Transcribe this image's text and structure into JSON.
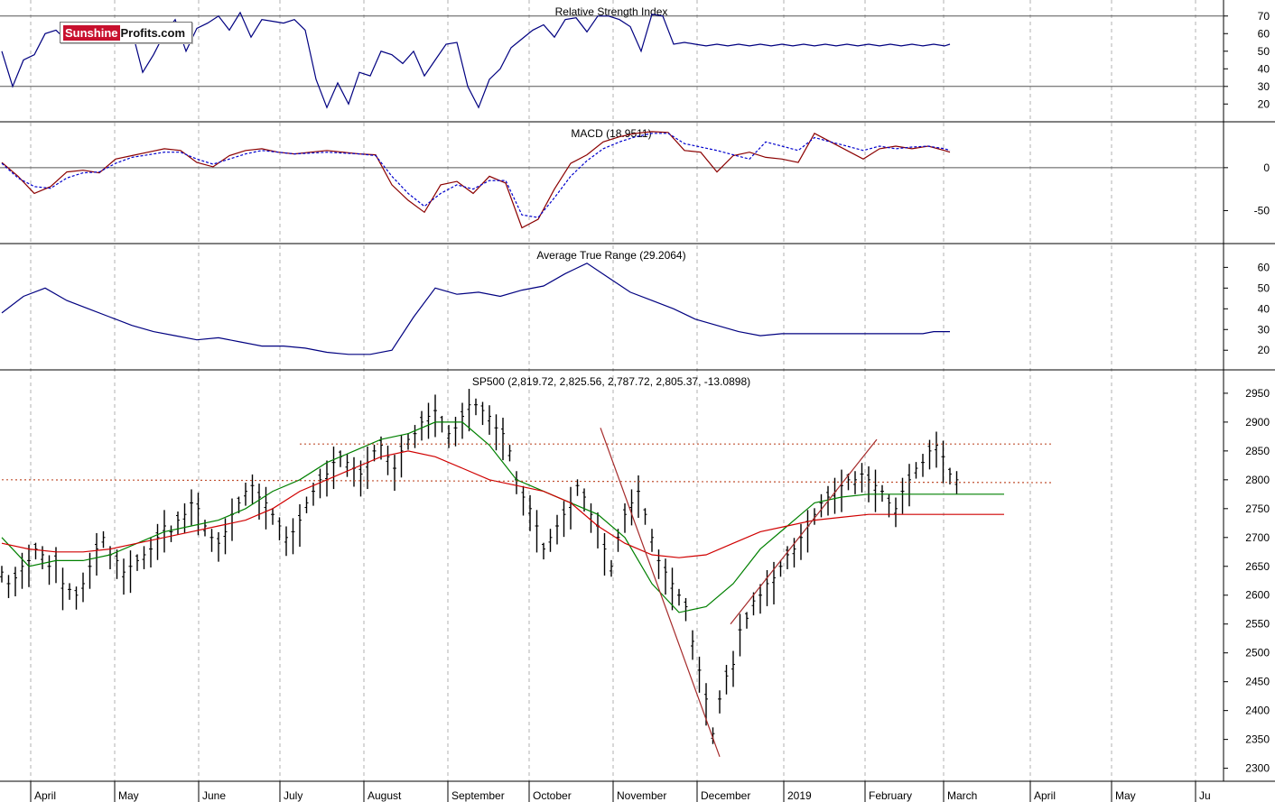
{
  "logo": {
    "part1": "Sunshine",
    "part2": "Profits.com"
  },
  "chart_data": [
    {
      "type": "line",
      "title": "Relative Strength Index",
      "ylim": [
        14,
        75
      ],
      "yticks": [
        70,
        60,
        50,
        40,
        30,
        20
      ],
      "reference_lines": [
        70,
        30
      ],
      "series": [
        {
          "name": "",
          "color": "#000080",
          "x_days": [
            0,
            4,
            8,
            12,
            16,
            20,
            24,
            28,
            32,
            36,
            40,
            44,
            48,
            52,
            56,
            60,
            64,
            68,
            72,
            76,
            80,
            84,
            88,
            92,
            96,
            100,
            104,
            108,
            112,
            116,
            120,
            124,
            128,
            132,
            136,
            140,
            144,
            148,
            152,
            156,
            160,
            164,
            168,
            172,
            176,
            180,
            184,
            188,
            192,
            196,
            200,
            204,
            208,
            212,
            216,
            220,
            224,
            228,
            232,
            236,
            240,
            244,
            248,
            252,
            256,
            260,
            264,
            268,
            272,
            276,
            280,
            284,
            288,
            292,
            296,
            300,
            304,
            308,
            312,
            316,
            320,
            324,
            328,
            332,
            336,
            340,
            344,
            348,
            350
          ],
          "values": [
            50,
            30,
            45,
            48,
            60,
            62,
            56,
            55,
            58,
            65,
            55,
            66,
            62,
            38,
            48,
            60,
            68,
            50,
            63,
            66,
            70,
            62,
            72,
            58,
            68,
            67,
            66,
            68,
            62,
            34,
            18,
            32,
            20,
            38,
            36,
            50,
            48,
            43,
            50,
            36,
            45,
            54,
            55,
            30,
            18,
            34,
            40,
            52,
            57,
            62,
            65,
            58,
            68,
            69,
            61,
            70,
            70,
            68,
            64,
            50,
            71,
            70,
            54,
            55,
            54,
            53,
            54,
            53,
            54,
            53,
            54,
            53,
            54,
            53,
            54,
            53,
            54,
            53,
            54,
            53,
            54,
            53,
            54,
            53,
            54,
            53,
            54,
            53,
            54
          ]
        }
      ]
    },
    {
      "type": "line",
      "title": "MACD (18.9511)",
      "ylim": [
        -80,
        45
      ],
      "yticks": [
        0,
        -50
      ],
      "zero_line": true,
      "series": [
        {
          "name": "",
          "color": "#8b0000",
          "style": "solid",
          "x_days": [
            0,
            6,
            12,
            18,
            24,
            30,
            36,
            42,
            48,
            54,
            60,
            66,
            72,
            78,
            84,
            90,
            96,
            102,
            108,
            114,
            120,
            126,
            132,
            138,
            144,
            150,
            156,
            162,
            168,
            174,
            180,
            186,
            192,
            198,
            204,
            210,
            216,
            222,
            228,
            234,
            240,
            246,
            252,
            258,
            264,
            270,
            276,
            282,
            288,
            294,
            300,
            306,
            312,
            318,
            324,
            330,
            336,
            342,
            348,
            350
          ],
          "values": [
            6,
            -10,
            -30,
            -22,
            -5,
            -3,
            -6,
            10,
            14,
            18,
            22,
            20,
            6,
            1,
            14,
            20,
            22,
            18,
            16,
            18,
            20,
            18,
            16,
            15,
            -20,
            -38,
            -52,
            -20,
            -16,
            -30,
            -10,
            -18,
            -70,
            -60,
            -25,
            5,
            15,
            30,
            36,
            40,
            42,
            41,
            20,
            18,
            -5,
            14,
            18,
            12,
            10,
            6,
            40,
            30,
            20,
            10,
            22,
            25,
            22,
            25,
            20,
            18
          ]
        },
        {
          "name": "",
          "color": "#0000cd",
          "style": "dashed",
          "x_days": [
            0,
            6,
            12,
            18,
            24,
            30,
            36,
            42,
            48,
            54,
            60,
            66,
            72,
            78,
            84,
            90,
            96,
            102,
            108,
            114,
            120,
            126,
            132,
            138,
            144,
            150,
            156,
            162,
            168,
            174,
            180,
            186,
            192,
            198,
            204,
            210,
            216,
            222,
            228,
            234,
            240,
            246,
            252,
            258,
            264,
            270,
            276,
            282,
            288,
            294,
            300,
            306,
            312,
            318,
            324,
            330,
            336,
            342,
            348,
            350
          ],
          "values": [
            5,
            -12,
            -22,
            -24,
            -12,
            -6,
            -5,
            5,
            12,
            15,
            18,
            18,
            10,
            4,
            10,
            16,
            20,
            18,
            16,
            17,
            18,
            17,
            16,
            14,
            -10,
            -30,
            -45,
            -30,
            -20,
            -25,
            -15,
            -15,
            -55,
            -58,
            -35,
            -10,
            8,
            22,
            30,
            36,
            40,
            40,
            28,
            24,
            20,
            15,
            10,
            30,
            25,
            20,
            35,
            30,
            25,
            20,
            25,
            22,
            24,
            25,
            22,
            20
          ]
        }
      ]
    },
    {
      "type": "line",
      "title": "Average True Range (29.2064)",
      "ylim": [
        14,
        68
      ],
      "yticks": [
        60,
        50,
        40,
        30,
        20
      ],
      "series": [
        {
          "name": "",
          "color": "#000080",
          "x_days": [
            0,
            8,
            16,
            24,
            32,
            40,
            48,
            56,
            64,
            72,
            80,
            88,
            96,
            104,
            112,
            120,
            128,
            136,
            144,
            152,
            160,
            168,
            176,
            184,
            192,
            200,
            208,
            216,
            224,
            232,
            240,
            248,
            256,
            264,
            272,
            280,
            288,
            296,
            300,
            304,
            308,
            312,
            316,
            320,
            324,
            328,
            332,
            336,
            340,
            344,
            348,
            350
          ],
          "values": [
            38,
            46,
            50,
            44,
            40,
            36,
            32,
            29,
            27,
            25,
            26,
            24,
            22,
            22,
            21,
            19,
            18,
            18,
            20,
            36,
            50,
            47,
            48,
            46,
            49,
            51,
            57,
            62,
            55,
            48,
            44,
            40,
            35,
            32,
            29,
            27,
            28,
            28,
            28,
            28,
            28,
            28,
            28,
            28,
            28,
            28,
            28,
            28,
            28,
            29,
            29,
            29
          ]
        }
      ]
    },
    {
      "type": "line",
      "title": "SP500 (2,819.72, 2,825.56, 2,787.72, 2,805.37, -13.0898)",
      "ylim": [
        2290,
        2978
      ],
      "yticks": [
        2950,
        2900,
        2850,
        2800,
        2750,
        2700,
        2650,
        2600,
        2550,
        2500,
        2450,
        2400,
        2350,
        2300
      ],
      "xlabels": [
        "April",
        "May",
        "June",
        "July",
        "August",
        "September",
        "October",
        "November",
        "December",
        "2019",
        "February",
        "March",
        "April",
        "May",
        "Ju"
      ],
      "x_label_days": [
        12,
        43,
        74,
        104,
        135,
        166,
        196,
        227,
        258,
        290,
        320,
        349,
        381,
        411,
        442
      ],
      "ohlc_daily_close": [
        2640,
        2620,
        2630,
        2650,
        2660,
        2680,
        2670,
        2650,
        2660,
        2620,
        2610,
        2600,
        2620,
        2650,
        2680,
        2700,
        2670,
        2660,
        2640,
        2650,
        2660,
        2670,
        2680,
        2700,
        2720,
        2710,
        2730,
        2740,
        2760,
        2750,
        2720,
        2700,
        2690,
        2710,
        2740,
        2760,
        2780,
        2790,
        2770,
        2760,
        2740,
        2720,
        2700,
        2710,
        2730,
        2760,
        2780,
        2800,
        2810,
        2830,
        2840,
        2830,
        2820,
        2810,
        2830,
        2850,
        2860,
        2840,
        2820,
        2850,
        2870,
        2880,
        2900,
        2910,
        2920,
        2900,
        2880,
        2890,
        2910,
        2930,
        2930,
        2920,
        2910,
        2890,
        2880,
        2850,
        2800,
        2770,
        2750,
        2720,
        2680,
        2700,
        2720,
        2740,
        2760,
        2790,
        2770,
        2740,
        2720,
        2680,
        2650,
        2700,
        2740,
        2760,
        2780,
        2740,
        2700,
        2660,
        2640,
        2620,
        2600,
        2580,
        2520,
        2470,
        2420,
        2360,
        2420,
        2460,
        2480,
        2540,
        2560,
        2590,
        2600,
        2620,
        2630,
        2650,
        2670,
        2680,
        2700,
        2720,
        2740,
        2760,
        2770,
        2780,
        2790,
        2800,
        2800,
        2810,
        2800,
        2790,
        2780,
        2760,
        2750,
        2780,
        2800,
        2820,
        2830,
        2850,
        2860,
        2840,
        2810,
        2800
      ],
      "series": [
        {
          "name": "",
          "color": "#008000",
          "style": "solid",
          "x_days": [
            0,
            10,
            20,
            30,
            40,
            50,
            60,
            70,
            80,
            90,
            100,
            110,
            120,
            130,
            140,
            150,
            160,
            170,
            180,
            190,
            200,
            210,
            220,
            230,
            240,
            250,
            260,
            270,
            280,
            290,
            300,
            310,
            320,
            330,
            340,
            350,
            360,
            370
          ],
          "values": [
            2700,
            2650,
            2660,
            2660,
            2670,
            2690,
            2710,
            2720,
            2730,
            2750,
            2780,
            2800,
            2830,
            2850,
            2870,
            2880,
            2900,
            2900,
            2860,
            2800,
            2780,
            2760,
            2740,
            2700,
            2620,
            2570,
            2580,
            2620,
            2680,
            2720,
            2760,
            2770,
            2775,
            2775,
            2775,
            2775,
            2775,
            2775
          ]
        },
        {
          "name": "",
          "color": "#d00000",
          "style": "solid",
          "x_days": [
            0,
            10,
            20,
            30,
            40,
            50,
            60,
            70,
            80,
            90,
            100,
            110,
            120,
            130,
            140,
            150,
            160,
            170,
            180,
            190,
            200,
            210,
            220,
            230,
            240,
            250,
            260,
            270,
            280,
            290,
            300,
            310,
            320,
            330,
            340,
            350,
            360,
            370
          ],
          "values": [
            2690,
            2680,
            2675,
            2675,
            2680,
            2690,
            2700,
            2710,
            2720,
            2730,
            2750,
            2780,
            2800,
            2820,
            2840,
            2850,
            2840,
            2820,
            2800,
            2790,
            2780,
            2760,
            2720,
            2690,
            2670,
            2665,
            2670,
            2690,
            2710,
            2720,
            2730,
            2735,
            2740,
            2740,
            2740,
            2740,
            2740,
            2740
          ]
        },
        {
          "name": "",
          "color": "#a52a2a",
          "style": "solid",
          "note": "",
          "x_days": [
            221,
            265
          ],
          "values": [
            2890,
            2320
          ]
        },
        {
          "name": "",
          "color": "#a52a2a",
          "style": "solid",
          "x_days": [
            269,
            323
          ],
          "values": [
            2550,
            2870
          ]
        },
        {
          "name": "",
          "color": "#c05030",
          "style": "dotted",
          "x_days": [
            110,
            388
          ],
          "values": [
            2862,
            2862
          ]
        },
        {
          "name": "",
          "color": "#c05030",
          "style": "dotted",
          "x_days": [
            0,
            388
          ],
          "values": [
            2800,
            2795
          ]
        }
      ]
    }
  ]
}
